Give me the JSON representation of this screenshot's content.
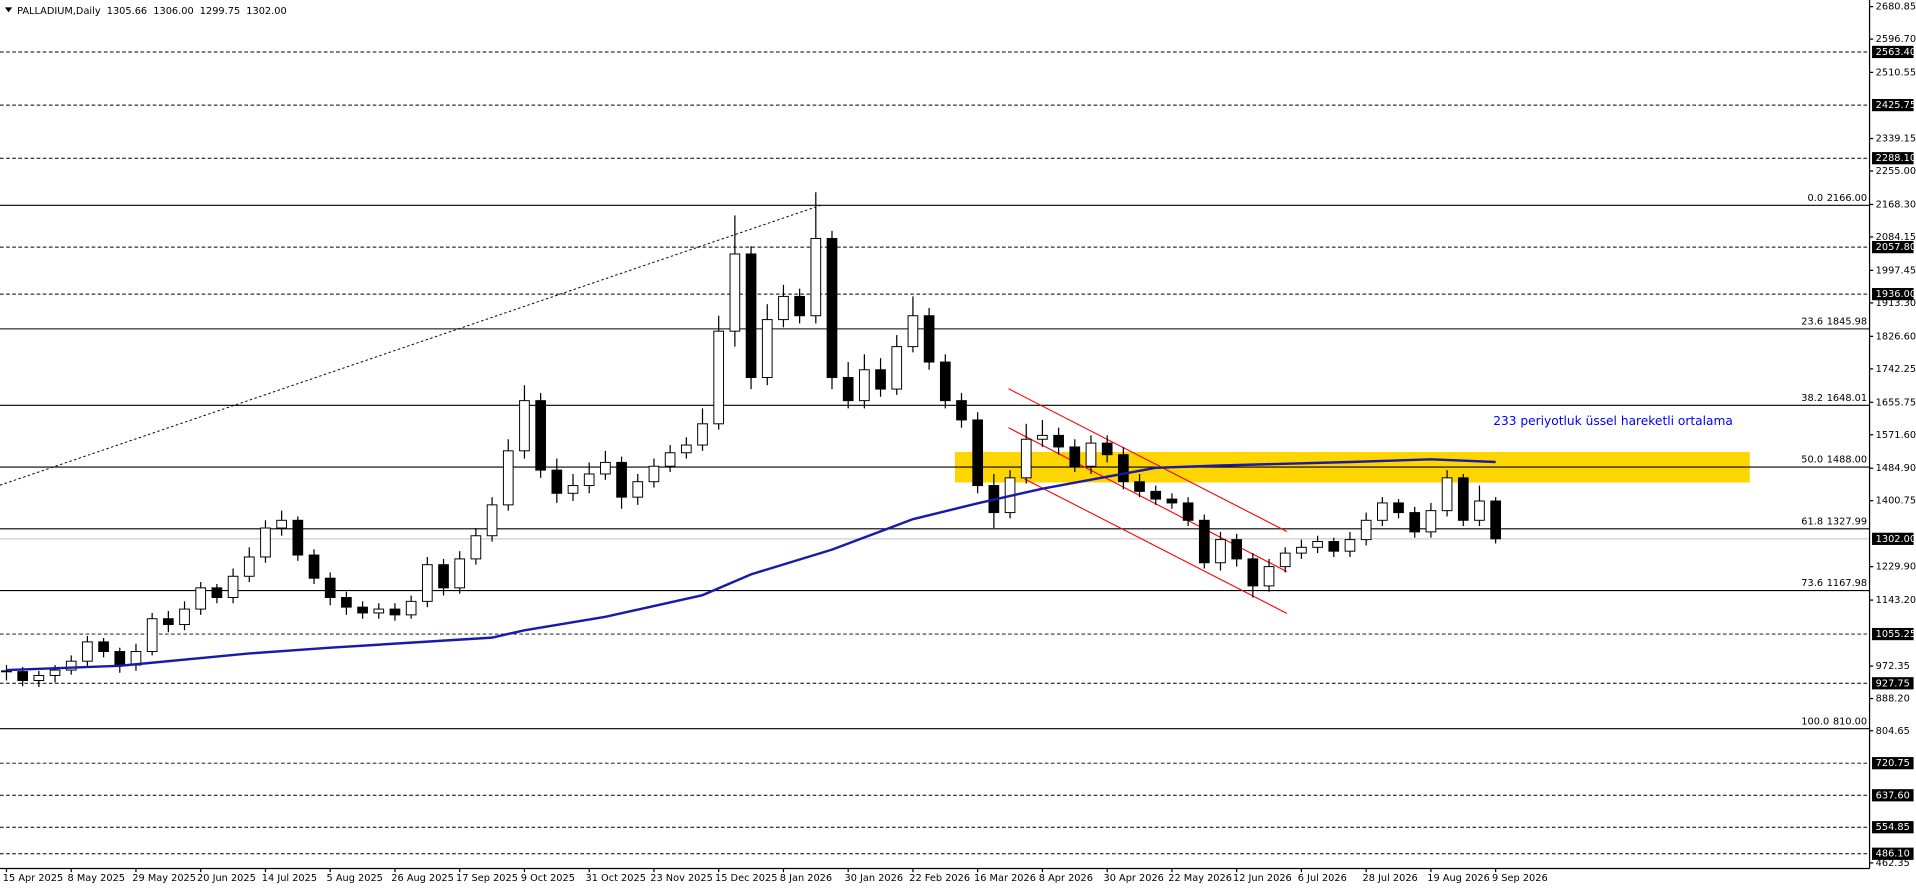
{
  "chart_data": {
    "type": "candlestick",
    "title": "PALLADIUM,Daily",
    "ohlc_labels": [
      {
        "value": 1305.66,
        "label": "1305.66"
      },
      {
        "value": 1306,
        "label": "1306.00"
      },
      {
        "value": 1299.75,
        "label": "1299.75"
      },
      {
        "value": 1302,
        "label": "1302.00"
      }
    ],
    "categories": [
      "15 Apr 2025",
      null,
      null,
      null,
      "8 May 2025",
      null,
      null,
      null,
      "29 May 2025",
      null,
      null,
      null,
      "20 Jun 2025",
      null,
      null,
      null,
      "14 Jul 2025",
      null,
      null,
      null,
      "5 Aug 2025",
      null,
      null,
      null,
      "26 Aug 2025",
      null,
      null,
      null,
      "17 Sep 2025",
      null,
      null,
      null,
      "9 Oct 2025",
      null,
      null,
      null,
      "31 Oct 2025",
      null,
      null,
      null,
      "23 Nov 2025",
      null,
      null,
      null,
      "15 Dec 2025",
      null,
      null,
      null,
      "8 Jan 2026",
      null,
      null,
      null,
      "30 Jan 2026",
      null,
      null,
      null,
      "22 Feb 2026",
      null,
      null,
      null,
      "16 Mar 2026",
      null,
      null,
      null,
      "8 Apr 2026",
      null,
      null,
      null,
      "30 Apr 2026",
      null,
      null,
      null,
      "22 May 2026",
      null,
      null,
      null,
      "12 Jun 2026",
      null,
      null,
      null,
      "6 Jul 2026",
      null,
      null,
      null,
      "28 Jul 2026",
      null,
      null,
      null,
      "19 Aug 2026",
      null,
      null,
      null,
      "9 Sep 2026"
    ],
    "open": [
      960,
      958,
      935,
      948,
      962,
      985,
      1035,
      1010,
      975,
      1010,
      1095,
      1080,
      1120,
      1175,
      1150,
      1205,
      1255,
      1330,
      1350,
      1260,
      1200,
      1150,
      1125,
      1110,
      1120,
      1105,
      1140,
      1235,
      1175,
      1250,
      1310,
      1390,
      1530,
      1660,
      1480,
      1420,
      1440,
      1470,
      1500,
      1410,
      1450,
      1490,
      1525,
      1545,
      1600,
      1840,
      2040,
      1720,
      1870,
      1930,
      1880,
      2080,
      1720,
      1660,
      1740,
      1690,
      1800,
      1880,
      1760,
      1660,
      1610,
      1440,
      1370,
      1460,
      1560,
      1570,
      1540,
      1490,
      1550,
      1520,
      1450,
      1425,
      1405,
      1395,
      1350,
      1240,
      1300,
      1250,
      1180,
      1230,
      1265,
      1280,
      1295,
      1270,
      1300,
      1350,
      1395,
      1370,
      1320,
      1375,
      1460,
      1350,
      1400
    ],
    "high": [
      975,
      970,
      960,
      975,
      1000,
      1050,
      1045,
      1020,
      1030,
      1110,
      1115,
      1140,
      1190,
      1185,
      1225,
      1280,
      1350,
      1375,
      1360,
      1275,
      1215,
      1165,
      1140,
      1135,
      1135,
      1155,
      1255,
      1250,
      1270,
      1330,
      1410,
      1560,
      1700,
      1680,
      1510,
      1470,
      1500,
      1530,
      1515,
      1470,
      1510,
      1545,
      1565,
      1640,
      1880,
      2140,
      2060,
      1910,
      1960,
      1950,
      2200,
      2100,
      1760,
      1780,
      1770,
      1830,
      1930,
      1900,
      1780,
      1680,
      1630,
      1470,
      1480,
      1600,
      1610,
      1590,
      1560,
      1570,
      1570,
      1540,
      1470,
      1440,
      1420,
      1410,
      1365,
      1320,
      1315,
      1265,
      1250,
      1280,
      1300,
      1310,
      1305,
      1320,
      1370,
      1410,
      1405,
      1385,
      1395,
      1480,
      1470,
      1440,
      1410
    ],
    "low": [
      935,
      920,
      918,
      930,
      950,
      970,
      995,
      955,
      960,
      1000,
      1060,
      1065,
      1105,
      1135,
      1135,
      1190,
      1240,
      1310,
      1245,
      1185,
      1130,
      1105,
      1095,
      1095,
      1090,
      1095,
      1125,
      1155,
      1160,
      1235,
      1295,
      1375,
      1510,
      1460,
      1395,
      1400,
      1420,
      1455,
      1380,
      1390,
      1435,
      1475,
      1510,
      1530,
      1585,
      1800,
      1690,
      1700,
      1850,
      1860,
      1860,
      1690,
      1640,
      1640,
      1670,
      1675,
      1785,
      1740,
      1640,
      1590,
      1420,
      1330,
      1355,
      1445,
      1540,
      1520,
      1475,
      1470,
      1500,
      1430,
      1410,
      1390,
      1380,
      1335,
      1225,
      1220,
      1230,
      1150,
      1165,
      1215,
      1250,
      1265,
      1255,
      1255,
      1285,
      1335,
      1355,
      1305,
      1305,
      1360,
      1335,
      1335,
      1290
    ],
    "close": [
      958,
      935,
      948,
      962,
      985,
      1035,
      1010,
      975,
      1010,
      1095,
      1080,
      1120,
      1175,
      1150,
      1205,
      1255,
      1330,
      1350,
      1260,
      1200,
      1150,
      1125,
      1110,
      1120,
      1105,
      1140,
      1235,
      1175,
      1250,
      1310,
      1390,
      1530,
      1660,
      1480,
      1420,
      1440,
      1470,
      1500,
      1410,
      1450,
      1490,
      1525,
      1545,
      1600,
      1840,
      2040,
      1720,
      1870,
      1930,
      1880,
      2080,
      1720,
      1660,
      1740,
      1690,
      1800,
      1880,
      1760,
      1660,
      1610,
      1440,
      1370,
      1460,
      1560,
      1570,
      1540,
      1490,
      1550,
      1520,
      1450,
      1425,
      1405,
      1395,
      1350,
      1240,
      1300,
      1250,
      1180,
      1230,
      1265,
      1280,
      1295,
      1270,
      1300,
      1350,
      1395,
      1370,
      1320,
      1375,
      1460,
      1350,
      1400,
      1302
    ],
    "up_color": "#ffffff",
    "down_color": "#000000",
    "wick_color": "#000000",
    "xlim": [
      -0.4,
      115.1
    ],
    "ylim": [
      448,
      2698
    ],
    "yticks": [
      2680.85,
      {
        "value": 2596.7,
        "label": "2596.70"
      },
      2510.55,
      2339.15,
      {
        "value": 2255,
        "label": "2255.00"
      },
      {
        "value": 2168.3,
        "label": "2168.30"
      },
      2084.15,
      1997.45,
      {
        "value": 1913.3,
        "label": "1913.30"
      },
      {
        "value": 1826.6,
        "label": "1826.60"
      },
      1742.25,
      1655.75,
      {
        "value": 1571.6,
        "label": "1571.60"
      },
      {
        "value": 1484.9,
        "label": "1484.90"
      },
      1400.75,
      {
        "value": 1229.9,
        "label": "1229.90"
      },
      {
        "value": 1143.2,
        "label": "1143.20"
      },
      972.35,
      {
        "value": 888.2,
        "label": "888.20"
      },
      804.65,
      462.35
    ],
    "levels": [
      {
        "value": 2563.4,
        "label": "2563.40"
      },
      2425.75,
      {
        "value": 2288.1,
        "label": "2288.10"
      },
      {
        "value": 2057.8,
        "label": "2057.80"
      },
      {
        "value": 1936,
        "label": "1936.00"
      },
      1055.25,
      927.75,
      720.75,
      {
        "value": 637.6,
        "label": "637.60"
      },
      554.85,
      {
        "value": 486.1,
        "label": "486.10"
      }
    ],
    "current_price": {
      "value": 1302,
      "label": "1302.00"
    },
    "fib_levels": [
      {
        "ratio": "0.0",
        "value": 2166,
        "label": "2166.00"
      },
      {
        "ratio": "23.6",
        "value": 1845.98
      },
      {
        "ratio": "38.2",
        "value": 1648.01
      },
      {
        "ratio": "50.0",
        "value": 1488,
        "label": "1488.00"
      },
      {
        "ratio": "61.8",
        "value": 1327.99
      },
      {
        "ratio": "73.6",
        "value": 1167.98
      },
      {
        "ratio": "100.0",
        "value": 810,
        "label": "810.00"
      }
    ],
    "ema": {
      "color": "#1a1aaa",
      "x": [
        0,
        7,
        15,
        20,
        30,
        32,
        37,
        43,
        46,
        51,
        56,
        60,
        64,
        68,
        71,
        75,
        83,
        88,
        92
      ],
      "values": [
        962,
        973,
        1005,
        1020,
        1046,
        1065,
        1100,
        1156,
        1210,
        1274,
        1353,
        1394,
        1432,
        1463,
        1486,
        1492,
        1501,
        1508,
        1501
      ]
    },
    "annotation": "233 periyotluk üssel hareketli ortalama",
    "annotation_color": "#0000ff",
    "zone": {
      "color": "#ffd500",
      "x": [
        58.6,
        107.7
      ],
      "from": 1448,
      "to": 1527
    },
    "channel": {
      "color": "#ff0000",
      "lines": [
        {
          "x": [
            61.9,
            79.1
          ],
          "values": [
            1691,
            1321
          ]
        },
        {
          "x": [
            61.9,
            79.1
          ],
          "values": [
            1590,
            1217
          ]
        },
        {
          "x": [
            62.9,
            79.1
          ],
          "values": [
            1457,
            1109
          ]
        }
      ]
    },
    "trendline": {
      "x": [
        -0.4,
        50.3
      ],
      "values": [
        1441,
        2166
      ]
    }
  }
}
